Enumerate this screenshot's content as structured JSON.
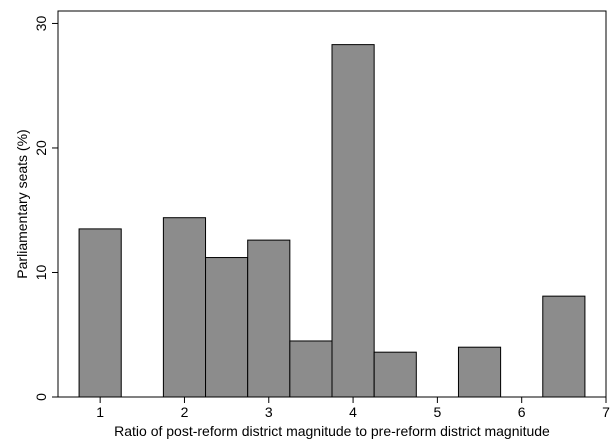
{
  "chart_data": {
    "type": "bar",
    "title": "",
    "xlabel": "Ratio of post-reform district magnitude to pre-reform district magnitude",
    "ylabel": "Parliamentary seats (%)",
    "xlim": [
      0.5,
      7
    ],
    "ylim": [
      0,
      31
    ],
    "xticks": [
      1,
      2,
      3,
      4,
      5,
      6,
      7
    ],
    "yticks": [
      0,
      10,
      20,
      30
    ],
    "grid": false,
    "bars": [
      {
        "x0": 0.75,
        "x1": 1.25,
        "value": 13.5
      },
      {
        "x0": 1.75,
        "x1": 2.25,
        "value": 14.4
      },
      {
        "x0": 2.25,
        "x1": 2.75,
        "value": 11.2
      },
      {
        "x0": 2.75,
        "x1": 3.25,
        "value": 12.6
      },
      {
        "x0": 3.25,
        "x1": 3.75,
        "value": 4.5
      },
      {
        "x0": 3.75,
        "x1": 4.25,
        "value": 28.3
      },
      {
        "x0": 4.25,
        "x1": 4.75,
        "value": 3.6
      },
      {
        "x0": 5.25,
        "x1": 5.75,
        "value": 4.0
      },
      {
        "x0": 6.25,
        "x1": 6.75,
        "value": 8.1
      }
    ],
    "colors": {
      "bar_fill": "#8c8c8c",
      "bar_edge": "#000000",
      "axis": "#000000"
    }
  }
}
